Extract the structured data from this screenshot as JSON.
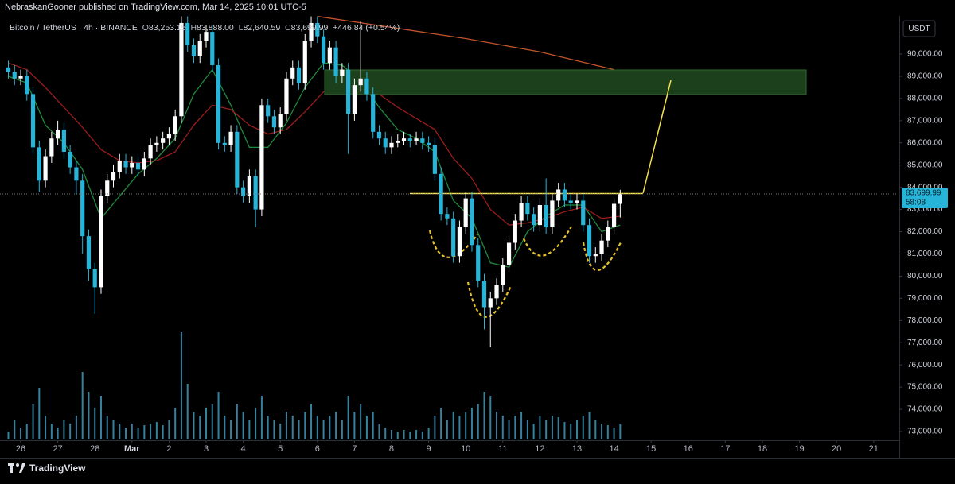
{
  "header": {
    "publisher": "NebraskanGooner published on TradingView.com, Mar 14, 2025 10:01 UTC-5"
  },
  "legend": {
    "symbol": "Bitcoin / TetherUS · 4h · BINANCE",
    "o": "O",
    "open": "83,253.15",
    "h": "H",
    "high": "83,888.00",
    "l": "L",
    "low": "82,640.59",
    "c": "C",
    "close": "83,699.99",
    "change": "+446.84 (+0.54%)"
  },
  "footer": {
    "brand": "TradingView"
  },
  "chart_data": {
    "type": "candlestick",
    "currency": "USDT",
    "up_color": "#ffffff",
    "down_color": "#26b5d9",
    "volume_color": "#3d8fb0",
    "last_price_label": "83,699.99",
    "countdown": "58:08",
    "xlim": [
      -13.4,
      568.6
    ],
    "ylim": [
      72640,
      91720
    ],
    "xticks": [
      {
        "value": 0,
        "label": "26"
      },
      {
        "value": 24,
        "label": "27"
      },
      {
        "value": 48,
        "label": "28"
      },
      {
        "value": 72,
        "label": "Mar"
      },
      {
        "value": 96,
        "label": "2"
      },
      {
        "value": 120,
        "label": "3"
      },
      {
        "value": 144,
        "label": "4"
      },
      {
        "value": 168,
        "label": "5"
      },
      {
        "value": 192,
        "label": "6"
      },
      {
        "value": 216,
        "label": "7"
      },
      {
        "value": 240,
        "label": "8"
      },
      {
        "value": 264,
        "label": "9"
      },
      {
        "value": 288,
        "label": "10"
      },
      {
        "value": 312,
        "label": "11"
      },
      {
        "value": 336,
        "label": "12"
      },
      {
        "value": 360,
        "label": "13"
      },
      {
        "value": 384,
        "label": "14"
      },
      {
        "value": 408,
        "label": "15"
      },
      {
        "value": 432,
        "label": "16"
      },
      {
        "value": 456,
        "label": "17"
      },
      {
        "value": 480,
        "label": "18"
      },
      {
        "value": 504,
        "label": "19"
      },
      {
        "value": 528,
        "label": "20"
      },
      {
        "value": 552,
        "label": "21"
      }
    ],
    "yticks": [
      {
        "value": 73000,
        "label": "73,000.00"
      },
      {
        "value": 74000,
        "label": "74,000.00"
      },
      {
        "value": 75000,
        "label": "75,000.00"
      },
      {
        "value": 76000,
        "label": "76,000.00"
      },
      {
        "value": 77000,
        "label": "77,000.00"
      },
      {
        "value": 78000,
        "label": "78,000.00"
      },
      {
        "value": 79000,
        "label": "79,000.00"
      },
      {
        "value": 80000,
        "label": "80,000.00"
      },
      {
        "value": 81000,
        "label": "81,000.00"
      },
      {
        "value": 82000,
        "label": "82,000.00"
      },
      {
        "value": 83000,
        "label": "83,000.00"
      },
      {
        "value": 84000,
        "label": "84,000.00"
      },
      {
        "value": 85000,
        "label": "85,000.00"
      },
      {
        "value": 86000,
        "label": "86,000.00"
      },
      {
        "value": 87000,
        "label": "87,000.00"
      },
      {
        "value": 88000,
        "label": "88,000.00"
      },
      {
        "value": 89000,
        "label": "89,000.00"
      },
      {
        "value": 90000,
        "label": "90,000.00"
      }
    ],
    "x": [
      -8,
      -4,
      0,
      4,
      8,
      12,
      16,
      20,
      24,
      28,
      32,
      36,
      40,
      44,
      48,
      52,
      56,
      60,
      64,
      68,
      72,
      76,
      80,
      84,
      88,
      92,
      96,
      100,
      104,
      108,
      112,
      116,
      120,
      124,
      128,
      132,
      136,
      140,
      144,
      148,
      152,
      156,
      160,
      164,
      168,
      172,
      176,
      180,
      184,
      188,
      192,
      196,
      200,
      204,
      208,
      212,
      216,
      220,
      224,
      228,
      232,
      236,
      240,
      244,
      248,
      252,
      256,
      260,
      264,
      268,
      272,
      276,
      280,
      284,
      288,
      292,
      296,
      300,
      304,
      308,
      312,
      316,
      320,
      324,
      328,
      332,
      336,
      340,
      344,
      348,
      352,
      356,
      360,
      364,
      368,
      372,
      376,
      380,
      384,
      388
    ],
    "open": [
      89400,
      89200,
      88900,
      89000,
      88200,
      85800,
      84300,
      85400,
      86200,
      86600,
      85600,
      84900,
      84300,
      81800,
      80300,
      79500,
      83600,
      84300,
      84700,
      85200,
      84900,
      85100,
      84800,
      85300,
      85900,
      86000,
      86200,
      86400,
      87200,
      91400,
      90400,
      89900,
      90600,
      91000,
      89500,
      86000,
      85900,
      86500,
      84000,
      83600,
      84500,
      83000,
      87700,
      87200,
      86700,
      87300,
      88900,
      89400,
      88700,
      90600,
      91400,
      90800,
      89600,
      90300,
      89000,
      89300,
      87300,
      88600,
      88900,
      88200,
      86500,
      86200,
      85800,
      86000,
      86100,
      86200,
      86100,
      86200,
      86000,
      85900,
      84600,
      82800,
      82600,
      80900,
      82200,
      83500,
      81400,
      79800,
      78600,
      79000,
      79600,
      80500,
      81500,
      82500,
      83300,
      82800,
      82300,
      83200,
      82200,
      83400,
      83900,
      83400,
      83300,
      83400,
      82300,
      80900,
      81000,
      81600,
      82200,
      83253.15
    ],
    "high": [
      89700,
      89500,
      89300,
      89300,
      88500,
      86100,
      85700,
      86500,
      87000,
      86900,
      85900,
      85200,
      84600,
      82100,
      80600,
      83900,
      84600,
      85000,
      85500,
      85500,
      85400,
      85400,
      85600,
      86200,
      86300,
      86500,
      86700,
      87500,
      91700,
      91700,
      90700,
      90900,
      91300,
      91300,
      89800,
      86300,
      86800,
      86800,
      84300,
      84800,
      84800,
      88000,
      88000,
      87500,
      87600,
      89200,
      89700,
      89700,
      90900,
      91700,
      91700,
      91100,
      90600,
      90600,
      89600,
      89600,
      88900,
      91500,
      89200,
      88500,
      86800,
      86500,
      86300,
      86400,
      86500,
      86400,
      86500,
      86500,
      86300,
      86200,
      84900,
      83100,
      82900,
      82500,
      83800,
      83800,
      81700,
      80100,
      79300,
      79900,
      80800,
      81800,
      82800,
      83600,
      83600,
      83100,
      83500,
      84400,
      83700,
      84200,
      84200,
      83700,
      83700,
      83700,
      82600,
      81300,
      81900,
      82500,
      83500,
      83888
    ],
    "low": [
      88900,
      88600,
      88600,
      87900,
      85500,
      83800,
      84000,
      85100,
      85900,
      85300,
      84600,
      83700,
      81000,
      79800,
      78300,
      79200,
      83300,
      84000,
      84400,
      84600,
      84600,
      84500,
      84500,
      85000,
      85600,
      85700,
      85900,
      86100,
      86900,
      90100,
      89600,
      89600,
      90300,
      89200,
      85700,
      85600,
      85600,
      83700,
      83300,
      83300,
      82200,
      82700,
      86900,
      86400,
      86400,
      87000,
      88600,
      88400,
      88400,
      90300,
      90500,
      89300,
      89300,
      88700,
      88700,
      85500,
      87000,
      88300,
      87900,
      86200,
      85900,
      85500,
      85500,
      85800,
      85900,
      85800,
      85900,
      85700,
      85600,
      84300,
      82500,
      82300,
      80600,
      80600,
      81900,
      81100,
      79500,
      77600,
      76800,
      78700,
      79300,
      80200,
      81200,
      82200,
      82500,
      82000,
      82000,
      81900,
      81900,
      83100,
      83100,
      83000,
      83000,
      82000,
      80600,
      80600,
      80700,
      81300,
      81900,
      82640.59
    ],
    "close": [
      89200,
      88900,
      89000,
      88200,
      85800,
      84300,
      85400,
      86200,
      86600,
      85600,
      84900,
      84300,
      81800,
      80300,
      79500,
      83600,
      84300,
      84700,
      85200,
      84900,
      85100,
      84800,
      85300,
      85900,
      86000,
      86200,
      86400,
      87200,
      91400,
      90400,
      89900,
      90600,
      91000,
      89500,
      86000,
      85900,
      86500,
      84000,
      83600,
      84500,
      83000,
      87700,
      87200,
      86700,
      87300,
      88900,
      89400,
      88700,
      90600,
      91400,
      90800,
      89600,
      90300,
      89000,
      89300,
      87300,
      88600,
      88900,
      88200,
      86500,
      86200,
      85800,
      86000,
      86100,
      86200,
      86100,
      86200,
      86000,
      85900,
      84600,
      82800,
      82600,
      80900,
      82200,
      83500,
      81400,
      79800,
      78600,
      79000,
      79600,
      80500,
      81500,
      82500,
      83300,
      82800,
      82300,
      83200,
      82200,
      83400,
      83900,
      83400,
      83300,
      83400,
      82300,
      80900,
      81000,
      81600,
      82200,
      83253.15,
      83699.99
    ],
    "volume": [
      10,
      25,
      15,
      20,
      45,
      65,
      30,
      20,
      15,
      25,
      20,
      30,
      85,
      60,
      40,
      55,
      30,
      25,
      20,
      15,
      20,
      15,
      18,
      20,
      22,
      18,
      25,
      40,
      135,
      70,
      35,
      30,
      40,
      45,
      60,
      30,
      25,
      45,
      35,
      25,
      40,
      55,
      30,
      25,
      20,
      35,
      30,
      25,
      35,
      45,
      30,
      25,
      30,
      35,
      25,
      55,
      35,
      45,
      30,
      35,
      20,
      15,
      12,
      10,
      12,
      10,
      12,
      10,
      15,
      30,
      40,
      25,
      35,
      30,
      35,
      40,
      45,
      60,
      55,
      35,
      30,
      25,
      30,
      35,
      25,
      20,
      30,
      25,
      30,
      28,
      22,
      20,
      25,
      30,
      35,
      25,
      20,
      18,
      15,
      20
    ],
    "overlays": [
      {
        "color": "#1f8a3c",
        "x": [
          -8,
          4,
          16,
          28,
          40,
          52,
          64,
          76,
          88,
          100,
          112,
          124,
          136,
          148,
          160,
          172,
          184,
          196,
          208,
          220,
          232,
          244,
          256,
          268,
          280,
          292,
          304,
          316,
          328,
          340,
          352,
          364,
          376,
          388
        ],
        "values": [
          89000,
          88700,
          86800,
          86000,
          84800,
          82600,
          83600,
          84600,
          85300,
          86200,
          88200,
          89300,
          87700,
          85800,
          85800,
          86900,
          88500,
          89600,
          89500,
          88800,
          87600,
          86600,
          86200,
          85600,
          83400,
          82600,
          80600,
          80400,
          82000,
          82700,
          83200,
          83200,
          82000,
          82300
        ]
      },
      {
        "color": "#9c1c1c",
        "x": [
          -8,
          4,
          16,
          28,
          40,
          52,
          64,
          76,
          88,
          100,
          112,
          124,
          136,
          148,
          160,
          172,
          184,
          196,
          208,
          220,
          232,
          244,
          256,
          268,
          280,
          292,
          304,
          316,
          328,
          340,
          352,
          364,
          376,
          388
        ],
        "values": [
          89600,
          89300,
          88500,
          87600,
          86700,
          85700,
          85200,
          85100,
          85200,
          85600,
          86800,
          87700,
          87500,
          86800,
          86400,
          86600,
          87400,
          88300,
          88800,
          88700,
          88200,
          87600,
          87100,
          86600,
          85300,
          84400,
          83000,
          82300,
          82400,
          82600,
          82900,
          83100,
          82600,
          82700
        ]
      },
      {
        "color": "#c2542b",
        "x": [
          192,
          240,
          288,
          336,
          384
        ],
        "values": [
          91700,
          91200,
          90700,
          90100,
          89300
        ]
      }
    ]
  }
}
